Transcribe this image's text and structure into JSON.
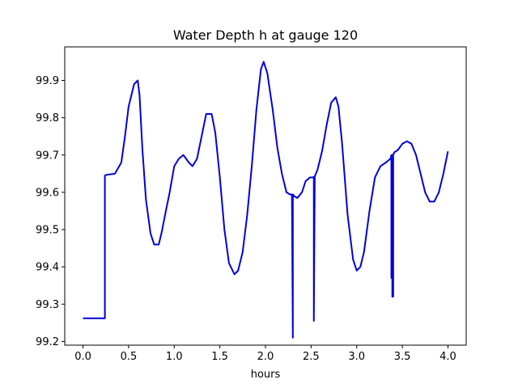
{
  "chart_data": {
    "type": "line",
    "title": "Water Depth h at gauge 120",
    "xlabel": "hours",
    "ylabel": "",
    "xlim": [
      -0.2,
      4.2
    ],
    "ylim": [
      99.19,
      99.99
    ],
    "xticks": [
      0.0,
      0.5,
      1.0,
      1.5,
      2.0,
      2.5,
      3.0,
      3.5,
      4.0
    ],
    "xtick_labels": [
      "0.0",
      "0.5",
      "1.0",
      "1.5",
      "2.0",
      "2.5",
      "3.0",
      "3.5",
      "4.0"
    ],
    "yticks": [
      99.2,
      99.3,
      99.4,
      99.5,
      99.6,
      99.7,
      99.8,
      99.9
    ],
    "ytick_labels": [
      "99.2",
      "99.3",
      "99.4",
      "99.5",
      "99.6",
      "99.7",
      "99.8",
      "99.9"
    ],
    "grid": false,
    "series": [
      {
        "color": "#0000dd",
        "x": [
          0.0,
          0.24,
          0.24,
          0.26,
          0.35,
          0.42,
          0.46,
          0.5,
          0.56,
          0.6,
          0.62,
          0.65,
          0.69,
          0.74,
          0.78,
          0.83,
          0.86,
          0.9,
          0.95,
          1.0,
          1.05,
          1.1,
          1.16,
          1.2,
          1.25,
          1.3,
          1.35,
          1.41,
          1.45,
          1.5,
          1.55,
          1.6,
          1.66,
          1.7,
          1.75,
          1.8,
          1.85,
          1.9,
          1.95,
          1.98,
          2.02,
          2.08,
          2.13,
          2.18,
          2.23,
          2.27,
          2.29,
          2.3,
          2.3,
          2.31,
          2.31,
          2.35,
          2.4,
          2.44,
          2.49,
          2.52,
          2.53,
          2.53,
          2.54,
          2.54,
          2.57,
          2.62,
          2.67,
          2.72,
          2.77,
          2.8,
          2.84,
          2.9,
          2.96,
          3.0,
          3.04,
          3.08,
          3.14,
          3.2,
          3.26,
          3.32,
          3.37,
          3.38,
          3.38,
          3.39,
          3.39,
          3.4,
          3.4,
          3.41,
          3.41,
          3.45,
          3.5,
          3.55,
          3.6,
          3.65,
          3.7,
          3.75,
          3.8,
          3.85,
          3.9,
          3.95,
          4.0
        ],
        "y": [
          99.262,
          99.262,
          99.645,
          99.647,
          99.65,
          99.68,
          99.75,
          99.83,
          99.89,
          99.9,
          99.86,
          99.72,
          99.58,
          99.49,
          99.46,
          99.46,
          99.49,
          99.54,
          99.6,
          99.67,
          99.69,
          99.7,
          99.68,
          99.67,
          99.69,
          99.75,
          99.81,
          99.81,
          99.76,
          99.64,
          99.5,
          99.41,
          99.38,
          99.39,
          99.44,
          99.54,
          99.67,
          99.82,
          99.93,
          99.95,
          99.92,
          99.82,
          99.72,
          99.65,
          99.6,
          99.594,
          99.594,
          99.21,
          99.594,
          99.592,
          99.59,
          99.585,
          99.6,
          99.63,
          99.64,
          99.64,
          99.641,
          99.255,
          99.641,
          99.643,
          99.66,
          99.71,
          99.78,
          99.84,
          99.855,
          99.83,
          99.73,
          99.54,
          99.42,
          99.39,
          99.4,
          99.44,
          99.55,
          99.64,
          99.67,
          99.68,
          99.69,
          99.7,
          99.37,
          99.7,
          99.32,
          99.32,
          99.702,
          99.705,
          99.707,
          99.713,
          99.73,
          99.737,
          99.73,
          99.7,
          99.65,
          99.6,
          99.575,
          99.575,
          99.6,
          99.65,
          99.71
        ]
      }
    ]
  }
}
